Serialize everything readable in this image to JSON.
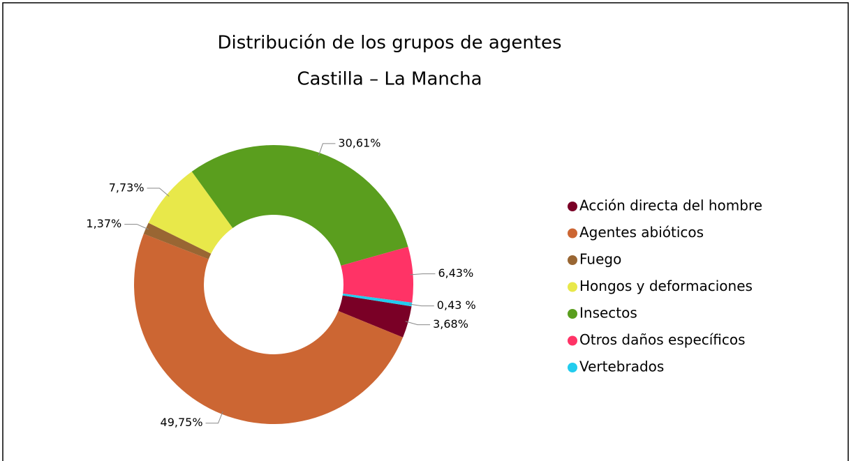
{
  "chart_data": {
    "type": "donut",
    "title": "Distribución de los grupos de agentes",
    "subtitle": "Castilla – La Mancha",
    "categories": [
      "Acción directa del hombre",
      "Agentes abióticos",
      "Fuego",
      "Hongos y deformaciones",
      "Insectos",
      "Otros daños específicos",
      "Vertebrados"
    ],
    "values": [
      3.68,
      49.75,
      1.37,
      7.73,
      30.61,
      6.43,
      0.43
    ],
    "value_labels": [
      "3,68%",
      "49,75%",
      "1,37%",
      "7,73%",
      "30,61%",
      "6,43%",
      "0,43 %"
    ],
    "colors": [
      "#7a0026",
      "#cc6633",
      "#996633",
      "#e8e84a",
      "#5a9e1e",
      "#ff3366",
      "#22ccee"
    ],
    "legend": "right"
  }
}
